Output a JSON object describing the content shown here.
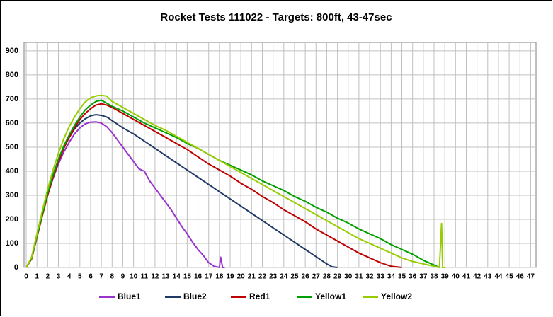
{
  "chart_data": {
    "type": "line",
    "title": "Rocket Tests 111022 - Targets: 800ft, 43-47sec",
    "xlim": [
      -0.2,
      47.5
    ],
    "ylim": [
      0,
      935
    ],
    "xticks": [
      0,
      1,
      2,
      3,
      4,
      5,
      6,
      7,
      8,
      9,
      10,
      11,
      12,
      13,
      14,
      15,
      16,
      17,
      18,
      19,
      20,
      21,
      22,
      23,
      24,
      25,
      26,
      27,
      28,
      29,
      30,
      31,
      32,
      33,
      34,
      35,
      36,
      37,
      38,
      39,
      40,
      41,
      42,
      43,
      44,
      45,
      46,
      47
    ],
    "yticks": [
      0,
      100,
      200,
      300,
      400,
      500,
      600,
      700,
      800,
      900
    ],
    "grid": true,
    "legend": "bottom",
    "series": [
      {
        "name": "Blue1",
        "color": "#9933cc",
        "x": [
          0,
          0.5,
          1,
          1.5,
          2,
          2.5,
          3,
          3.5,
          4,
          4.5,
          5,
          5.5,
          6,
          6.5,
          7,
          7.5,
          8,
          8.5,
          9,
          9.5,
          10,
          10.5,
          11,
          11.5,
          12,
          12.5,
          13,
          13.5,
          14,
          14.5,
          15,
          15.5,
          16,
          16.5,
          17,
          17.5,
          18,
          18.1,
          18.3,
          18.5
        ],
        "values": [
          0,
          40,
          130,
          220,
          300,
          370,
          430,
          480,
          520,
          555,
          580,
          597,
          604,
          605,
          600,
          585,
          560,
          530,
          500,
          470,
          440,
          410,
          400,
          360,
          330,
          300,
          270,
          240,
          205,
          170,
          140,
          105,
          75,
          50,
          20,
          5,
          0,
          45,
          0,
          0
        ]
      },
      {
        "name": "Blue2",
        "color": "#1f3864",
        "x": [
          0,
          0.5,
          1,
          1.5,
          2,
          2.5,
          3,
          3.5,
          4,
          4.5,
          5,
          5.5,
          6,
          6.5,
          7,
          7.5,
          7.7,
          8,
          8.5,
          9,
          10,
          11,
          12,
          13,
          14,
          15,
          16,
          17,
          18,
          19,
          20,
          21,
          22,
          23,
          24,
          25,
          26,
          27,
          28,
          28.5,
          29
        ],
        "values": [
          0,
          40,
          135,
          225,
          310,
          385,
          445,
          500,
          540,
          575,
          600,
          618,
          630,
          635,
          632,
          625,
          620,
          610,
          595,
          580,
          555,
          525,
          495,
          465,
          435,
          405,
          375,
          345,
          315,
          285,
          255,
          225,
          195,
          165,
          135,
          105,
          75,
          45,
          15,
          3,
          0
        ]
      },
      {
        "name": "Red1",
        "color": "#c00000",
        "x": [
          0,
          0.5,
          1,
          1.5,
          2,
          2.5,
          3,
          3.5,
          4,
          4.5,
          5,
          5.5,
          6,
          6.5,
          7,
          7.5,
          8,
          9,
          10,
          11,
          12,
          13,
          14,
          15,
          16,
          17,
          18,
          19,
          20,
          21,
          22,
          23,
          24,
          25,
          26,
          27,
          28,
          29,
          30,
          31,
          32,
          33,
          34,
          35
        ],
        "values": [
          0,
          35,
          125,
          215,
          300,
          375,
          440,
          495,
          540,
          580,
          615,
          640,
          660,
          675,
          680,
          675,
          665,
          640,
          615,
          590,
          565,
          540,
          515,
          490,
          460,
          430,
          405,
          380,
          350,
          325,
          295,
          270,
          240,
          215,
          190,
          160,
          135,
          110,
          85,
          60,
          40,
          20,
          5,
          0
        ]
      },
      {
        "name": "Yellow1",
        "color": "#00a000",
        "x": [
          0,
          0.5,
          1,
          1.5,
          2,
          2.5,
          3,
          3.5,
          4,
          4.5,
          5,
          5.5,
          6,
          6.5,
          7,
          8,
          9,
          10,
          11,
          12,
          13,
          14,
          15,
          16,
          17,
          18,
          19,
          20,
          21,
          22,
          23,
          24,
          25,
          26,
          27,
          28,
          29,
          30,
          31,
          32,
          33,
          34,
          35,
          36,
          37,
          38,
          38.5
        ],
        "values": [
          0,
          38,
          130,
          222,
          308,
          385,
          450,
          505,
          550,
          590,
          625,
          655,
          675,
          690,
          695,
          670,
          650,
          625,
          600,
          580,
          560,
          540,
          515,
          495,
          470,
          445,
          425,
          405,
          385,
          360,
          340,
          320,
          295,
          275,
          250,
          230,
          205,
          185,
          160,
          140,
          120,
          95,
          75,
          55,
          30,
          10,
          0
        ]
      },
      {
        "name": "Yellow2",
        "color": "#99cc00",
        "x": [
          0,
          0.5,
          1,
          1.5,
          2,
          2.5,
          3,
          3.5,
          4,
          4.5,
          5,
          5.5,
          6,
          6.5,
          7,
          7.5,
          8,
          9,
          10,
          11,
          12,
          13,
          14,
          15,
          16,
          17,
          18,
          19,
          20,
          21,
          22,
          23,
          24,
          25,
          26,
          27,
          28,
          29,
          30,
          31,
          32,
          33,
          34,
          35,
          36,
          37,
          38,
          38.5,
          38.7,
          38.8,
          39
        ],
        "values": [
          0,
          42,
          140,
          235,
          325,
          405,
          475,
          535,
          585,
          625,
          660,
          688,
          705,
          713,
          715,
          712,
          690,
          665,
          640,
          615,
          590,
          570,
          545,
          520,
          495,
          470,
          445,
          420,
          395,
          370,
          345,
          320,
          295,
          270,
          245,
          220,
          195,
          170,
          145,
          120,
          100,
          80,
          60,
          40,
          25,
          15,
          5,
          0,
          185,
          0,
          0
        ]
      }
    ]
  }
}
